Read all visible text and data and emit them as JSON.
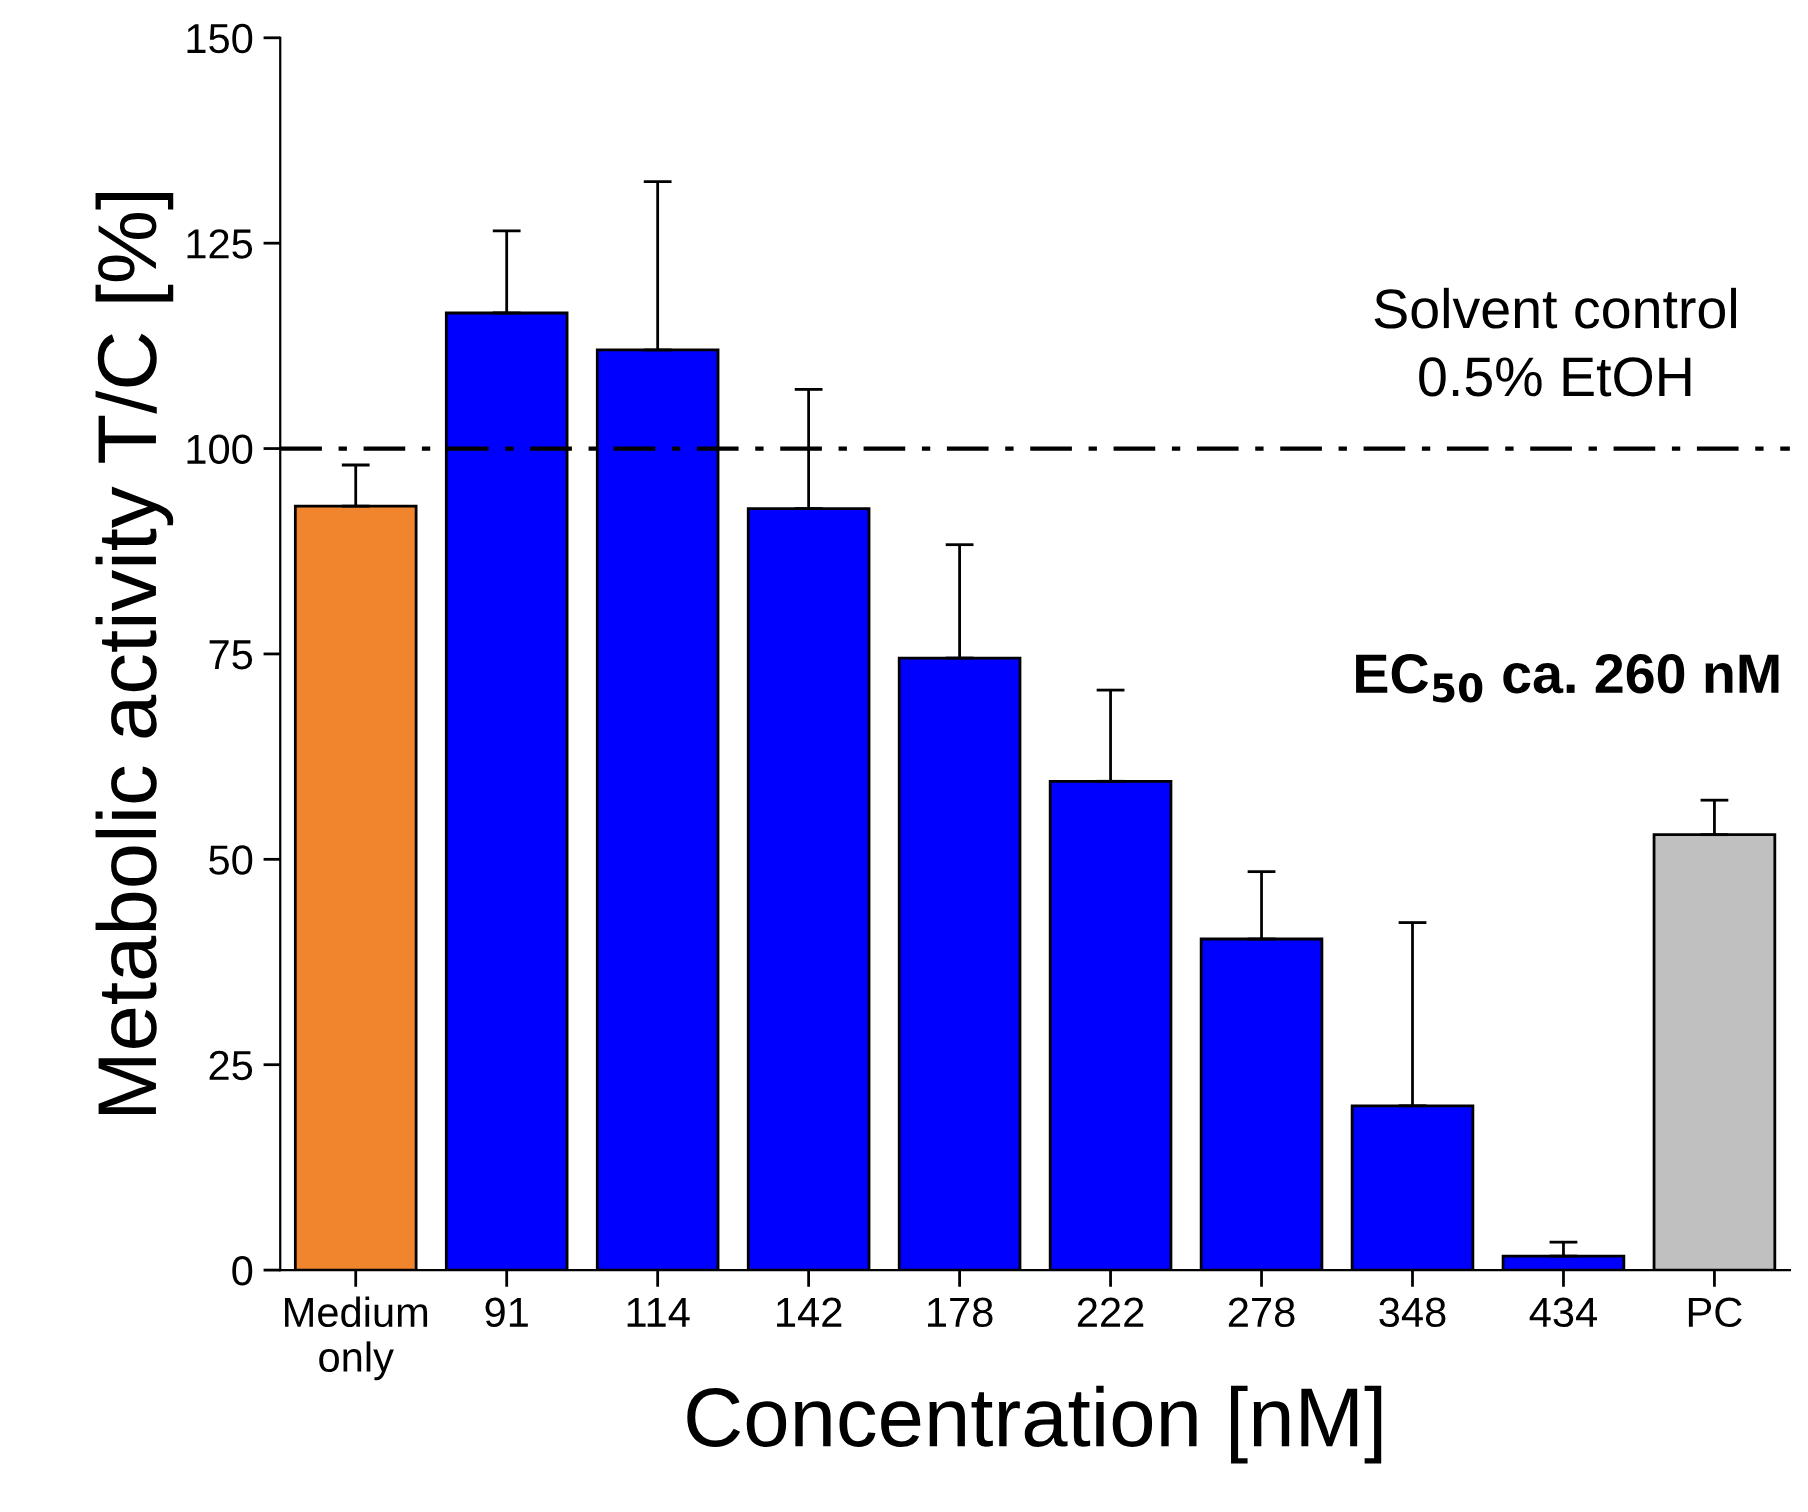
{
  "chart_data": {
    "type": "bar",
    "xlabel": "Concentration [nM]",
    "ylabel": "Metabolic activity T/C [%]",
    "categories": [
      "Medium\nonly",
      "91",
      "114",
      "142",
      "178",
      "222",
      "278",
      "348",
      "434",
      "PC"
    ],
    "values": [
      93,
      116.5,
      112,
      92.7,
      74.5,
      59.5,
      40.3,
      20,
      1.7,
      53
    ],
    "colors": [
      "#f0852d",
      "#0000ff",
      "#0000ff",
      "#0000ff",
      "#0000ff",
      "#0000ff",
      "#0000ff",
      "#0000ff",
      "#0000ff",
      "#c0c0c0"
    ],
    "errors": [
      [
        93,
        98
      ],
      [
        116.5,
        126.5
      ],
      [
        112,
        132.5
      ],
      [
        92.7,
        107.2
      ],
      [
        74.5,
        88.3
      ],
      [
        59.5,
        70.6
      ],
      [
        40.3,
        48.5
      ],
      [
        20,
        42.3
      ],
      [
        1.7,
        3.4
      ],
      [
        53,
        57.2
      ]
    ],
    "ylim": [
      0,
      150
    ],
    "yticks": [
      0,
      25,
      50,
      75,
      100,
      125,
      150
    ],
    "ref_lines": [
      {
        "axis": "y",
        "value": 100,
        "label": "Solvent control\n0.5% EtOH",
        "color": "#000000",
        "line_style": "dashed"
      }
    ],
    "annotations": [
      "EC$_{50}$ ca. 260 nM"
    ],
    "grid": false,
    "legend": false
  }
}
